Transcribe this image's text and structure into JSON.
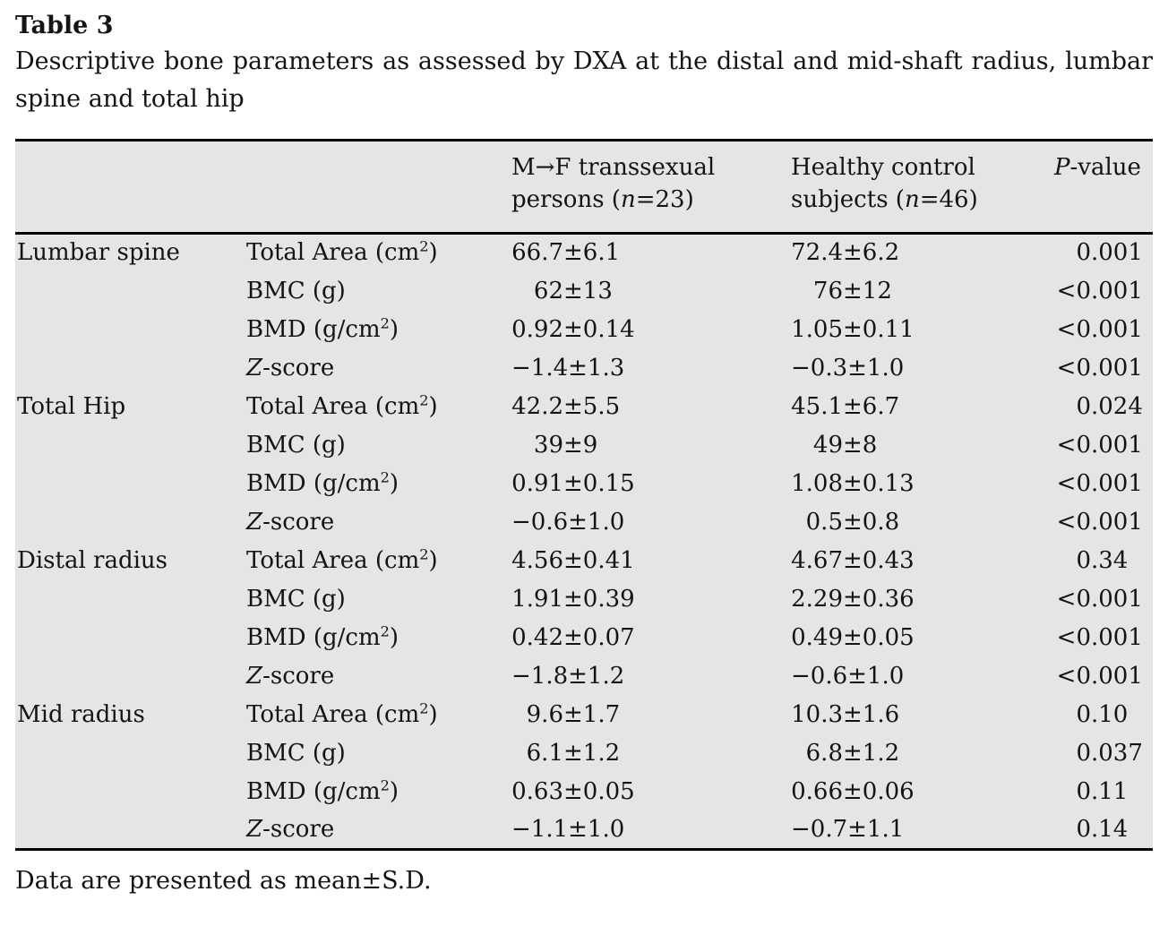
{
  "page": {
    "label": "Table 3",
    "caption": "Descriptive bone parameters as assessed by DXA at the distal and mid-shaft radius, lumbar spine and total hip",
    "footnote": "Data are presented as mean±S.D."
  },
  "colors": {
    "table_background": "#e5e5e5",
    "rule": "#000000",
    "text": "#141414"
  },
  "table": {
    "headers": {
      "col_group": "",
      "col_parameter": "",
      "col_mtf": [
        {
          "t": "M→F transsexual persons ("
        },
        {
          "t": "n",
          "i": true
        },
        {
          "t": "=23)"
        }
      ],
      "col_control": [
        {
          "t": "Healthy control subjects ("
        },
        {
          "t": "n",
          "i": true
        },
        {
          "t": "=46)"
        }
      ],
      "col_p": [
        {
          "t": "P",
          "i": true
        },
        {
          "t": "-value"
        }
      ]
    },
    "groups": [
      {
        "name": "Lumbar spine",
        "rows": [
          {
            "parameter": [
              {
                "t": "Total Area (cm"
              },
              {
                "t": "2",
                "sup": true
              },
              {
                "t": ")"
              }
            ],
            "mtf": "66.7±6.1",
            "control": "72.4±6.2",
            "p": "0.001"
          },
          {
            "parameter": [
              {
                "t": "BMC (g)"
              }
            ],
            "mtf": "62±13",
            "control": "76±12",
            "p": "<0.001"
          },
          {
            "parameter": [
              {
                "t": "BMD (g/cm"
              },
              {
                "t": "2",
                "sup": true
              },
              {
                "t": ")"
              }
            ],
            "mtf": "0.92±0.14",
            "control": "1.05±0.11",
            "p": "<0.001"
          },
          {
            "parameter": [
              {
                "t": "Z",
                "i": true
              },
              {
                "t": "-score"
              }
            ],
            "mtf": "−1.4±1.3",
            "control": "−0.3±1.0",
            "p": "<0.001"
          }
        ]
      },
      {
        "name": "Total Hip",
        "rows": [
          {
            "parameter": [
              {
                "t": "Total Area (cm"
              },
              {
                "t": "2",
                "sup": true
              },
              {
                "t": ")"
              }
            ],
            "mtf": "42.2±5.5",
            "control": "45.1±6.7",
            "p": "0.024"
          },
          {
            "parameter": [
              {
                "t": "BMC (g)"
              }
            ],
            "mtf": "39±9",
            "control": "49±8",
            "p": "<0.001"
          },
          {
            "parameter": [
              {
                "t": "BMD (g/cm"
              },
              {
                "t": "2",
                "sup": true
              },
              {
                "t": ")"
              }
            ],
            "mtf": "0.91±0.15",
            "control": "1.08±0.13",
            "p": "<0.001"
          },
          {
            "parameter": [
              {
                "t": "Z",
                "i": true
              },
              {
                "t": "-score"
              }
            ],
            "mtf": "−0.6±1.0",
            "control": "0.5±0.8",
            "p": "<0.001"
          }
        ]
      },
      {
        "name": "Distal radius",
        "rows": [
          {
            "parameter": [
              {
                "t": "Total Area (cm"
              },
              {
                "t": "2",
                "sup": true
              },
              {
                "t": ")"
              }
            ],
            "mtf": "4.56±0.41",
            "control": "4.67±0.43",
            "p": "0.34"
          },
          {
            "parameter": [
              {
                "t": "BMC (g)"
              }
            ],
            "mtf": "1.91±0.39",
            "control": "2.29±0.36",
            "p": "<0.001"
          },
          {
            "parameter": [
              {
                "t": "BMD (g/cm"
              },
              {
                "t": "2",
                "sup": true
              },
              {
                "t": ")"
              }
            ],
            "mtf": "0.42±0.07",
            "control": "0.49±0.05",
            "p": "<0.001"
          },
          {
            "parameter": [
              {
                "t": "Z",
                "i": true
              },
              {
                "t": "-score"
              }
            ],
            "mtf": "−1.8±1.2",
            "control": "−0.6±1.0",
            "p": "<0.001"
          }
        ]
      },
      {
        "name": "Mid radius",
        "rows": [
          {
            "parameter": [
              {
                "t": "Total Area (cm"
              },
              {
                "t": "2",
                "sup": true
              },
              {
                "t": ")"
              }
            ],
            "mtf": "9.6±1.7",
            "control": "10.3±1.6",
            "p": "0.10"
          },
          {
            "parameter": [
              {
                "t": "BMC (g)"
              }
            ],
            "mtf": "6.1±1.2",
            "control": "6.8±1.2",
            "p": "0.037"
          },
          {
            "parameter": [
              {
                "t": "BMD (g/cm"
              },
              {
                "t": "2",
                "sup": true
              },
              {
                "t": ")"
              }
            ],
            "mtf": "0.63±0.05",
            "control": "0.66±0.06",
            "p": "0.11"
          },
          {
            "parameter": [
              {
                "t": "Z",
                "i": true
              },
              {
                "t": "-score"
              }
            ],
            "mtf": "−1.1±1.0",
            "control": "−0.7±1.1",
            "p": "0.14"
          }
        ]
      }
    ]
  }
}
